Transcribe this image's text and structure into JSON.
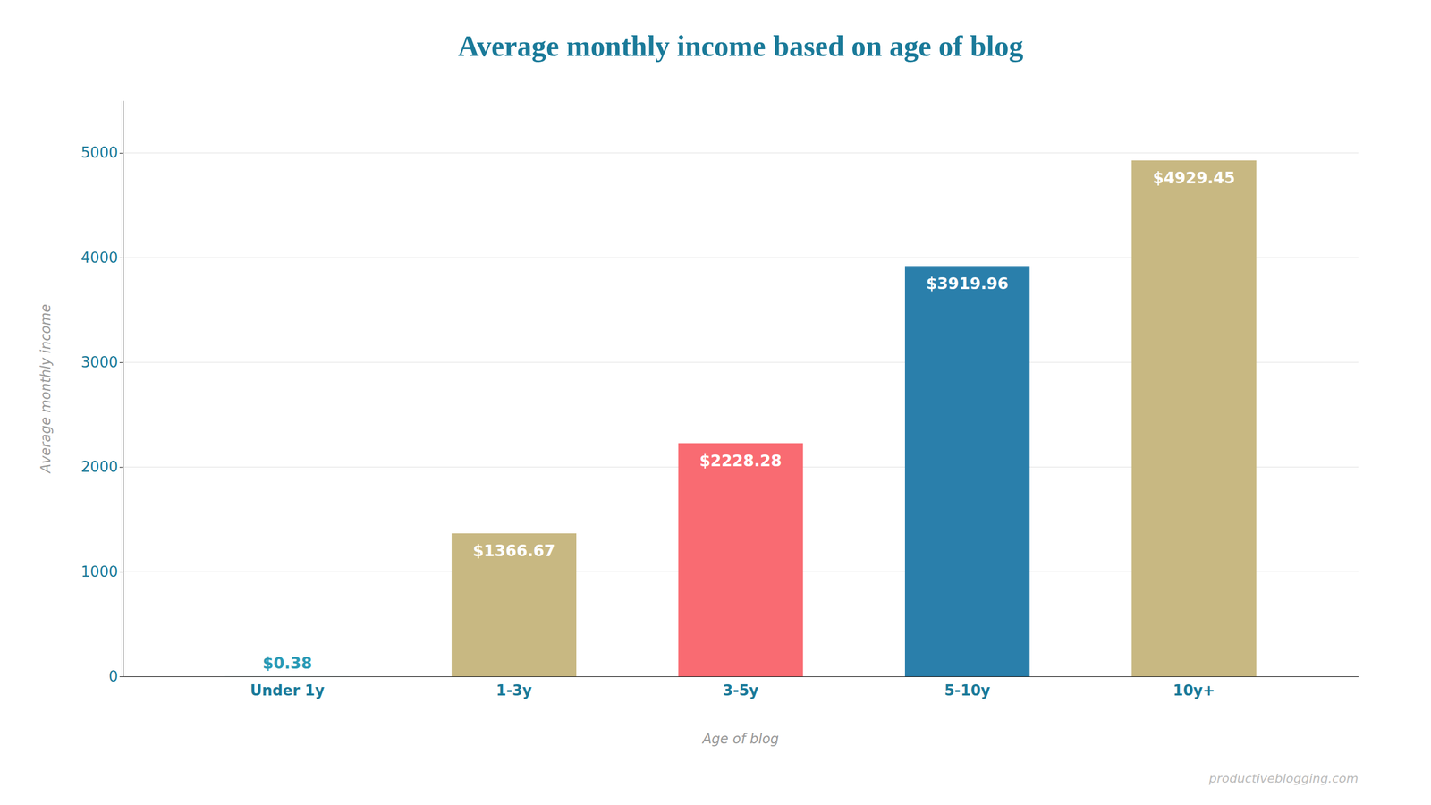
{
  "chart_data": {
    "type": "bar",
    "title": "Average monthly income based on age of blog",
    "xlabel": "Age of blog",
    "ylabel": "Average monthly income",
    "categories": [
      "Under 1y",
      "1-3y",
      "3-5y",
      "5-10y",
      "10y+"
    ],
    "values": [
      0.38,
      1366.67,
      2228.28,
      3919.96,
      4929.45
    ],
    "value_labels": [
      "$0.38",
      "$1366.67",
      "$2228.28",
      "$3919.96",
      "$4929.45"
    ],
    "colors": [
      "#2a9ab5",
      "#c8b882",
      "#f96b72",
      "#2a7fab",
      "#c8b882"
    ],
    "ylim": [
      0,
      5500
    ],
    "yticks": [
      0,
      1000,
      2000,
      3000,
      4000,
      5000
    ],
    "grid": true,
    "data_labels": true,
    "annotations": [
      "productiveblogging.com"
    ]
  }
}
